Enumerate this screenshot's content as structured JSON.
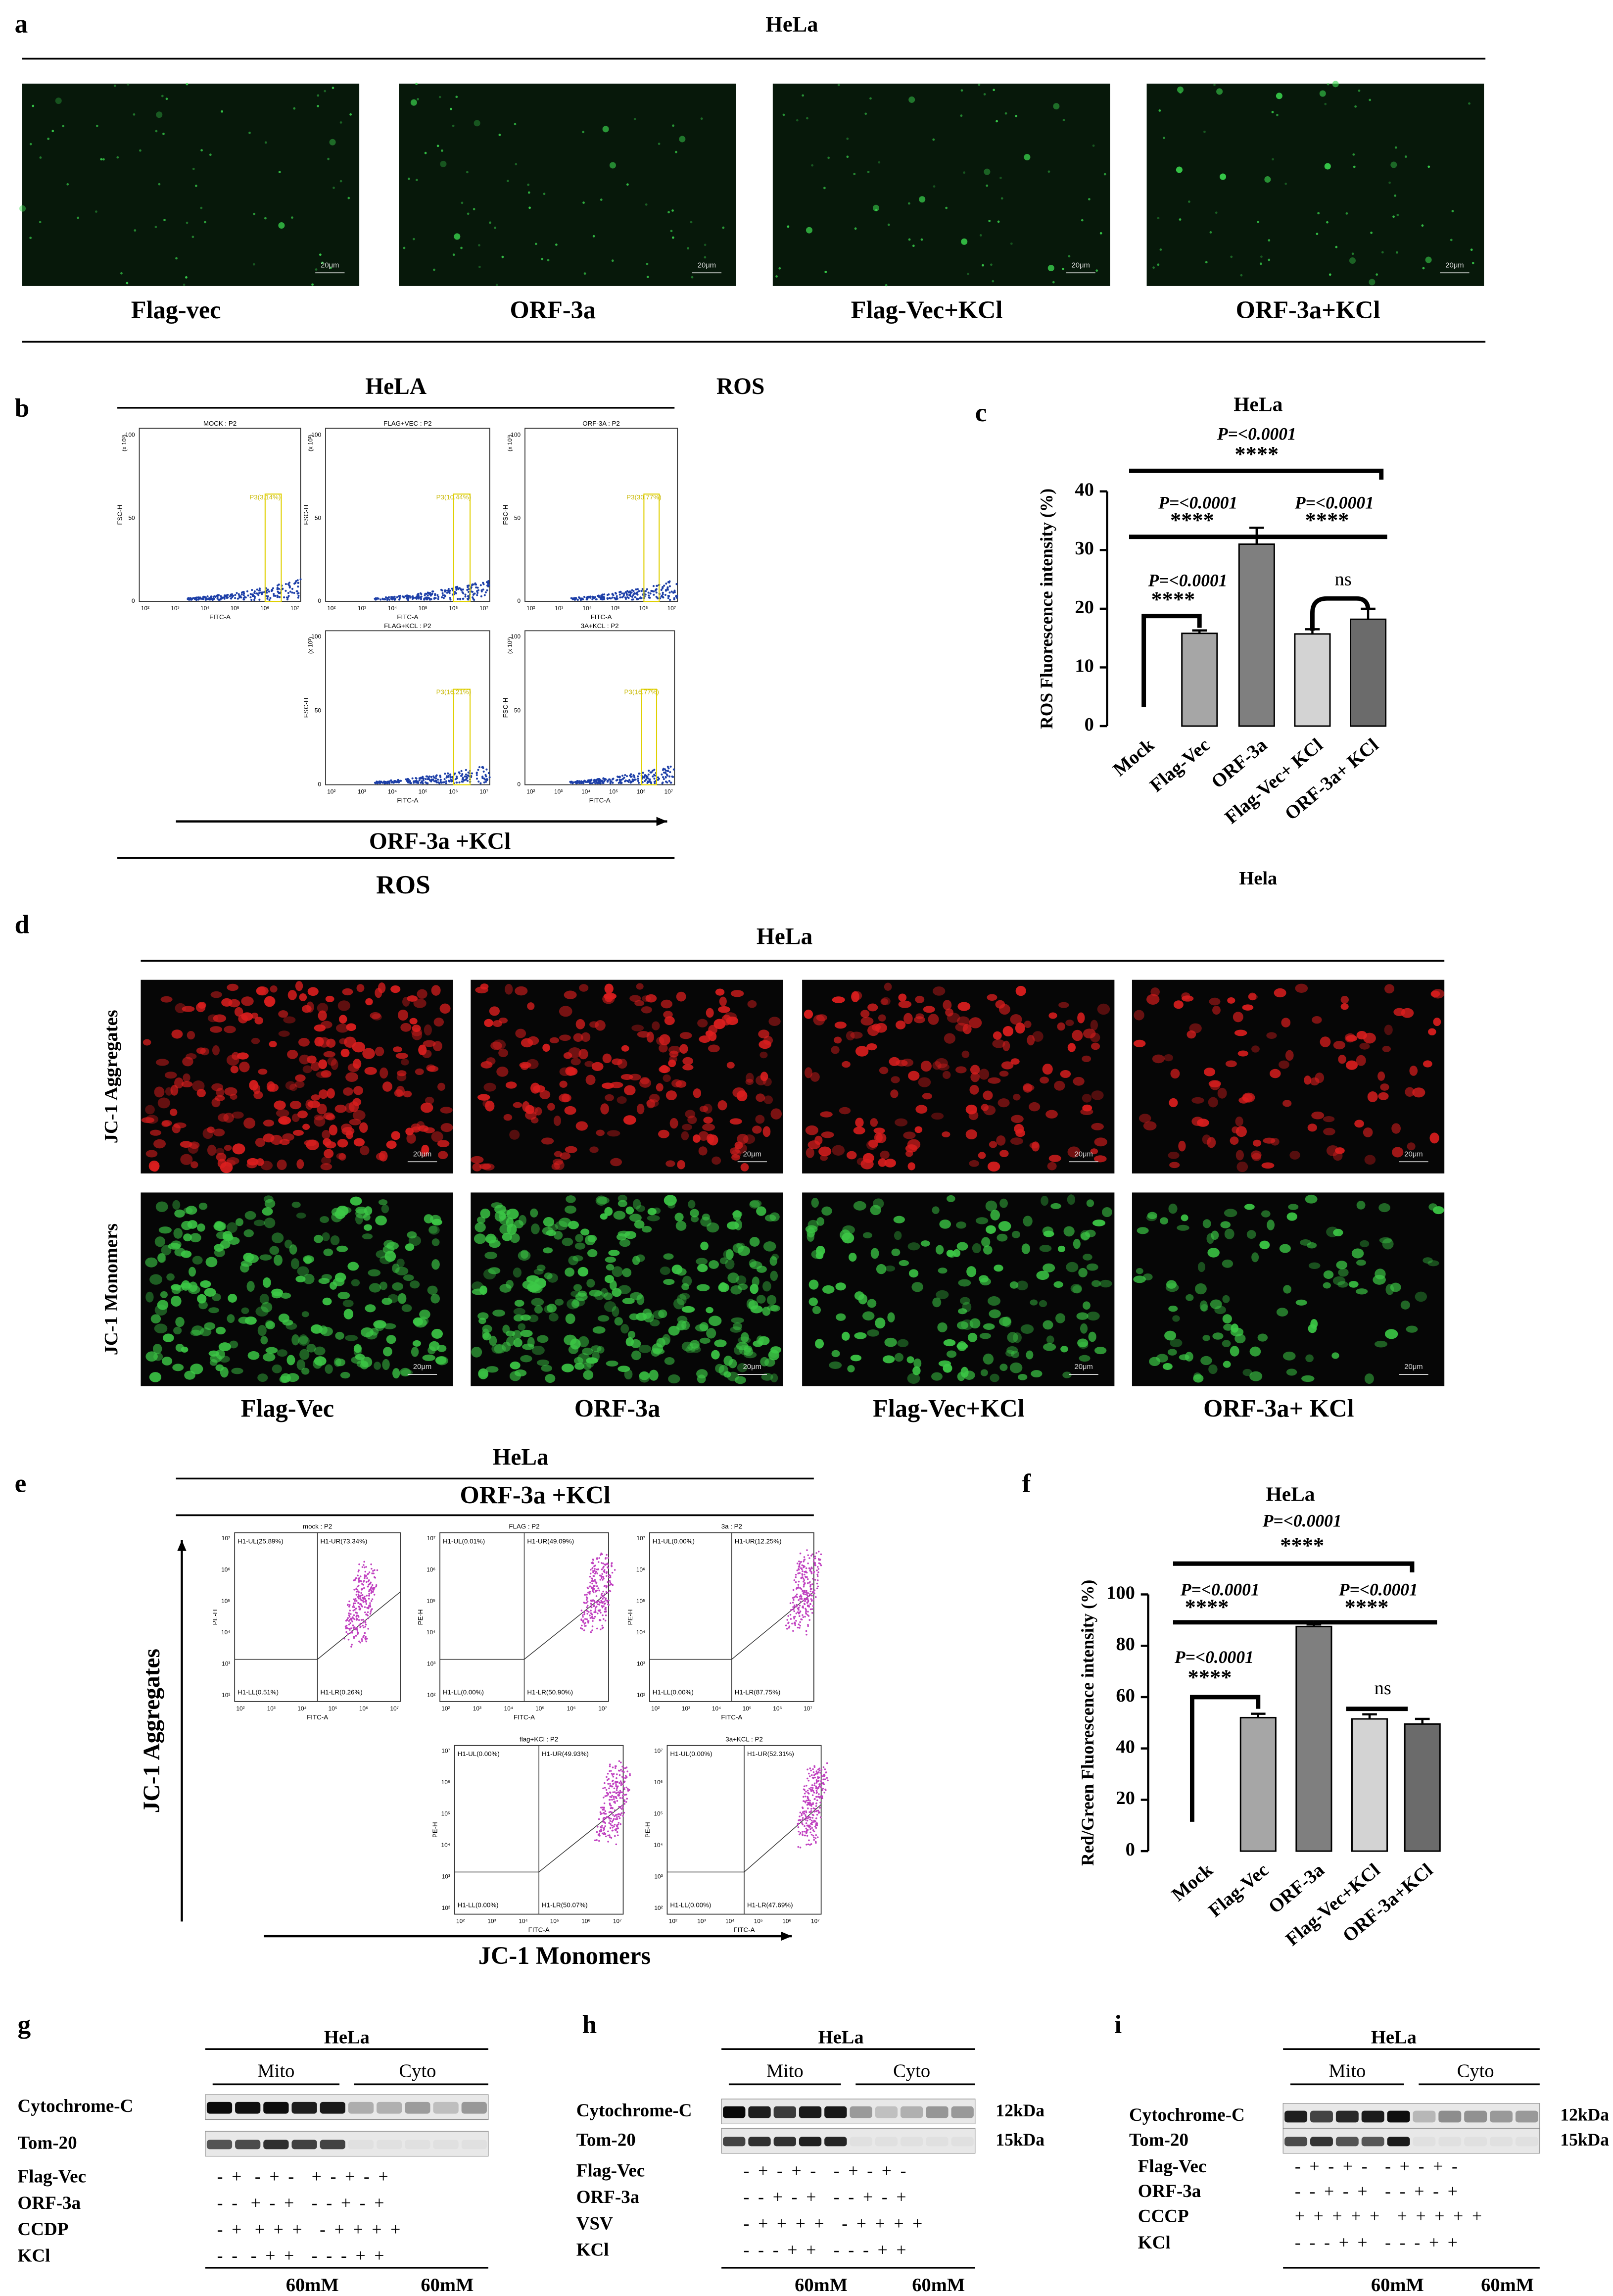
{
  "panel_a": {
    "label": "a",
    "title": "HeLa",
    "images": [
      "Flag-vec",
      "ORF-3a",
      "Flag-Vec+KCl",
      "ORF-3a+KCl"
    ],
    "scale_bar": "20μm"
  },
  "panel_b": {
    "label": "b",
    "title": "HeLA",
    "side_title": "ROS",
    "plots": [
      {
        "title": "MOCK : P2",
        "gate": "P3(3.14%)"
      },
      {
        "title": "FLAG+VEC : P2",
        "gate": "P3(10.44%)"
      },
      {
        "title": "ORF-3A : P2",
        "gate": "P3(30.77%)"
      },
      {
        "title": "FLAG+KCL : P2",
        "gate": "P3(16.21%)"
      },
      {
        "title": "3A+KCL : P2",
        "gate": "P3(16.77%)"
      }
    ],
    "y_axis": "FSC-H",
    "x_axis": "FITC-A",
    "y_unit": "(x 10³)",
    "y_ticks": [
      0,
      50,
      100
    ],
    "x_ticks": [
      "10²",
      "10³",
      "10⁴",
      "10⁵",
      "10⁶",
      "10⁷"
    ],
    "arrow_label": "ORF-3a +KCl",
    "footer": "ROS"
  },
  "panel_c": {
    "label": "c",
    "chart_data": {
      "type": "bar",
      "title": "HeLa",
      "x_label": "Hela",
      "y_label": "ROS Fluorescence intensity (%)",
      "categories": [
        "Mock",
        "Flag-Vec",
        "ORF-3a",
        "Flag-Vec+ KCl",
        "ORF-3a+ KCl"
      ],
      "values": [
        0,
        15.8,
        31,
        15.7,
        18.2
      ],
      "errors": [
        0,
        0.5,
        2.8,
        0.8,
        1.8
      ],
      "colors": [
        "#ffffff",
        "#a6a6a6",
        "#7f7f7f",
        "#d3d3d3",
        "#6b6b6b"
      ],
      "ylim": [
        0,
        40
      ],
      "yticks": [
        0,
        10,
        20,
        30,
        40
      ],
      "annotations": [
        {
          "p": "P=<0.0001",
          "stars": "****"
        },
        {
          "p": "P=<0.0001",
          "stars": "****"
        },
        {
          "p": "P=<0.0001",
          "stars": "****"
        },
        {
          "p": "P=<0.0001",
          "stars": "****"
        }
      ],
      "ns": "ns"
    }
  },
  "panel_d": {
    "label": "d",
    "title": "HeLa",
    "rows": [
      "JC-1 Aggregates",
      "JC-1 Monomers"
    ],
    "columns": [
      "Flag-Vec",
      "ORF-3a",
      "Flag-Vec+KCl",
      "ORF-3a+ KCl"
    ],
    "scale_bar": "20μm"
  },
  "panel_e": {
    "label": "e",
    "title": "HeLa",
    "subtitle": "ORF-3a +KCl",
    "y_arrow": "JC-1 Aggregates",
    "x_arrow": "JC-1 Monomers",
    "y_axis": "PE-H",
    "x_axis": "FITC-A",
    "ticks": [
      "10²",
      "10³",
      "10⁴",
      "10⁵",
      "10⁶",
      "10⁷"
    ],
    "plots": [
      {
        "title": "mock : P2",
        "quadrants": [
          "H1-UL(25.89%)",
          "H1-UR(73.34%)",
          "H1-LL(0.51%)",
          "H1-LR(0.26%)"
        ]
      },
      {
        "title": "FLAG : P2",
        "quadrants": [
          "H1-UL(0.01%)",
          "H1-UR(49.09%)",
          "H1-LL(0.00%)",
          "H1-LR(50.90%)"
        ]
      },
      {
        "title": "3a : P2",
        "quadrants": [
          "H1-UL(0.00%)",
          "H1-UR(12.25%)",
          "H1-LL(0.00%)",
          "H1-LR(87.75%)"
        ]
      },
      {
        "title": "flag+KCl : P2",
        "quadrants": [
          "H1-UL(0.00%)",
          "H1-UR(49.93%)",
          "H1-LL(0.00%)",
          "H1-LR(50.07%)"
        ]
      },
      {
        "title": "3a+KCL : P2",
        "quadrants": [
          "H1-UL(0.00%)",
          "H1-UR(52.31%)",
          "H1-LL(0.00%)",
          "H1-LR(47.69%)"
        ]
      }
    ]
  },
  "panel_f": {
    "label": "f",
    "chart_data": {
      "type": "bar",
      "title": "HeLa",
      "y_label": "Red/Green Fluorescence intensity (%)",
      "categories": [
        "Mock",
        "Flag-Vec",
        "ORF-3a",
        "Flag-Vec+KCl",
        "ORF-3a+KCl"
      ],
      "values": [
        0,
        52,
        87.5,
        51.5,
        49.5
      ],
      "errors": [
        0,
        1.5,
        0.8,
        1.8,
        2
      ],
      "colors": [
        "#ffffff",
        "#a6a6a6",
        "#7f7f7f",
        "#d3d3d3",
        "#6b6b6b"
      ],
      "ylim": [
        0,
        100
      ],
      "yticks": [
        0,
        20,
        40,
        60,
        80,
        100
      ],
      "annotations": [
        {
          "p": "P=<0.0001",
          "stars": "****"
        },
        {
          "p": "P=<0.0001",
          "stars": "****"
        },
        {
          "p": "P=<0.0001",
          "stars": "****"
        },
        {
          "p": "P=<0.0001",
          "stars": "****"
        }
      ],
      "ns": "ns"
    }
  },
  "panel_g": {
    "label": "g",
    "title": "HeLa",
    "groups": [
      "Mito",
      "Cyto"
    ],
    "rows": [
      "Cytochrome-C",
      "Tom-20",
      "Flag-Vec",
      "ORF-3a",
      "CCDP",
      "KCl"
    ],
    "signs": [
      "-  +   -  +  -    +  -  +  -  +",
      "-  -   +  -  +    -  -  +  -  +",
      "-  +   +  +  +    -  +  +  +  +",
      "-  -   -  +  +    -  -  -  +  +"
    ],
    "concentrations": [
      "60mM",
      "60mM"
    ]
  },
  "panel_h": {
    "label": "h",
    "title": "HeLa",
    "groups": [
      "Mito",
      "Cyto"
    ],
    "rows": [
      "Cytochrome-C",
      "Tom-20",
      "Flag-Vec",
      "ORF-3a",
      "VSV",
      "KCl"
    ],
    "signs": [
      "-  +  -  +  -    -  +  -  +  -",
      "-  -  +  -  +    -  -  +  -  +",
      "-  +  +  +  +    -  +  +  +  +",
      "-  -  -  +  +    -  -  -  +  +"
    ],
    "kda": [
      "12kDa",
      "15kDa"
    ],
    "concentrations": [
      "60mM",
      "60mM"
    ]
  },
  "panel_i": {
    "label": "i",
    "title": "HeLa",
    "groups": [
      "Mito",
      "Cyto"
    ],
    "rows": [
      "Cytochrome-C",
      "Tom-20",
      "Flag-Vec",
      "ORF-3a",
      "CCCP",
      "KCl"
    ],
    "signs": [
      "-  +  -  +  -    -  +  -  +  -",
      "-  -  +  -  +    -  -  +  -  +",
      "+  +  +  +  +    +  +  +  +  +",
      "-  -  -  +  +    -  -  -  +  +"
    ],
    "kda": [
      "12kDa",
      "15kDa"
    ],
    "concentrations": [
      "60mM",
      "60mM"
    ]
  }
}
